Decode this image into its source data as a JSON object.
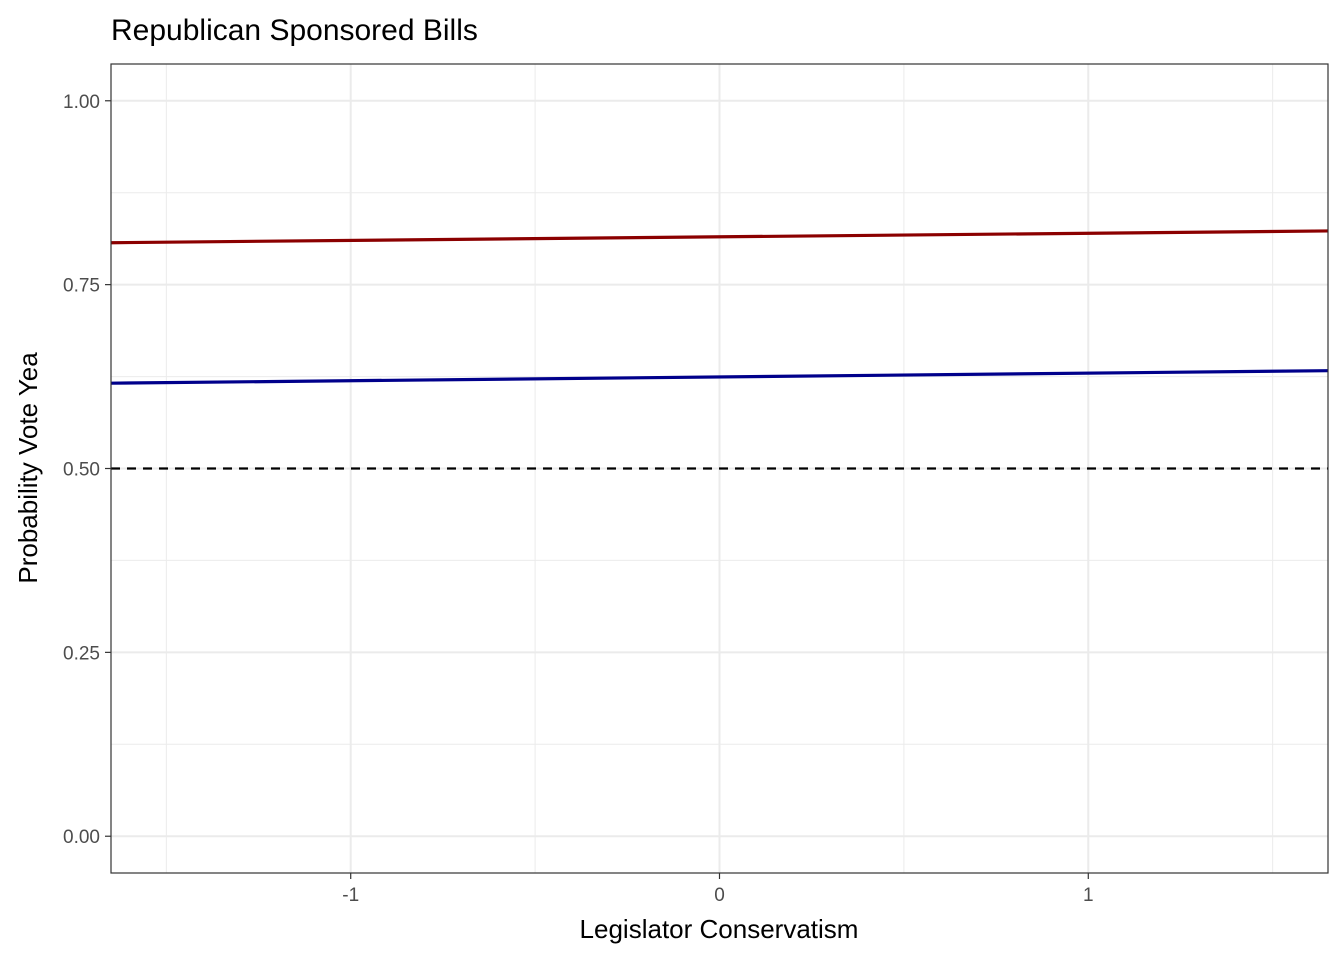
{
  "chart_data": {
    "type": "line",
    "title": "Republican Sponsored Bills",
    "xlabel": "Legislator Conservatism",
    "ylabel": "Probability Vote Yea",
    "xlim": [
      -1.65,
      1.65
    ],
    "ylim": [
      -0.05,
      1.05
    ],
    "x_ticks": [
      -1,
      0,
      1
    ],
    "x_tick_labels": [
      "-1",
      "0",
      "1"
    ],
    "y_ticks": [
      0,
      0.25,
      0.5,
      0.75,
      1.0
    ],
    "y_tick_labels": [
      "0.00",
      "0.25",
      "0.50",
      "0.75",
      "1.00"
    ],
    "grid": true,
    "series": [
      {
        "color": "#8b0000",
        "x": [
          -1.65,
          1.65
        ],
        "y": [
          0.807,
          0.823
        ]
      },
      {
        "color": "#00008b",
        "x": [
          -1.65,
          1.65
        ],
        "y": [
          0.616,
          0.633
        ]
      }
    ],
    "reference_line": {
      "y": 0.5,
      "style": "dashed",
      "color": "#000000"
    }
  }
}
